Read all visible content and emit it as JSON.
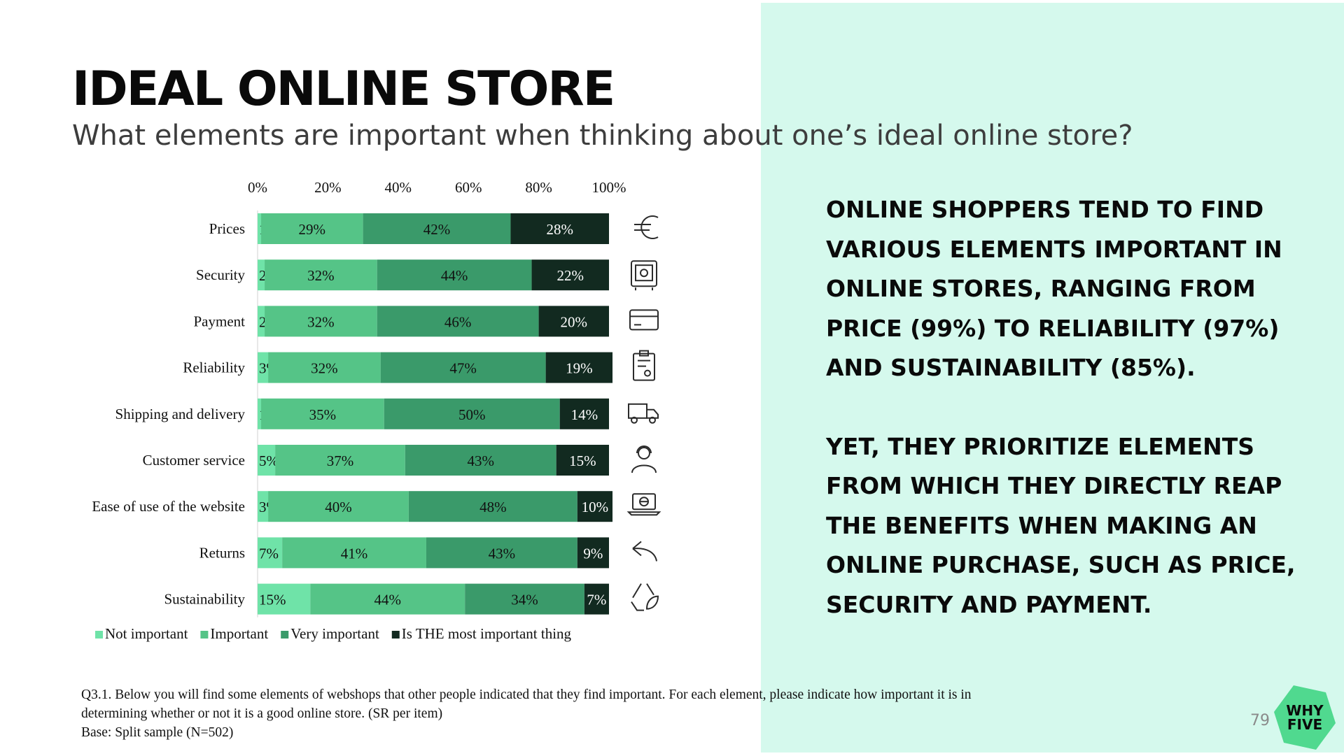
{
  "title": "IDEAL ONLINE STORE",
  "subtitle": "What elements are important when thinking about one’s ideal online store?",
  "chart_data": {
    "type": "bar",
    "orientation": "horizontal",
    "stacked": true,
    "xlim": [
      0,
      100
    ],
    "x_ticks": [
      "0%",
      "20%",
      "40%",
      "60%",
      "80%",
      "100%"
    ],
    "categories": [
      "Prices",
      "Security",
      "Payment",
      "Reliability",
      "Shipping and delivery",
      "Customer service",
      "Ease of use of the website",
      "Returns",
      "Sustainability"
    ],
    "series": [
      {
        "name": "Not important",
        "color": "#6fe3a8",
        "values": [
          1,
          2,
          2,
          3,
          1,
          5,
          3,
          7,
          15
        ]
      },
      {
        "name": "Important",
        "color": "#55c487",
        "values": [
          29,
          32,
          32,
          32,
          35,
          37,
          40,
          41,
          44
        ]
      },
      {
        "name": "Very important",
        "color": "#3a9a6a",
        "values": [
          42,
          44,
          46,
          47,
          50,
          43,
          48,
          43,
          34
        ]
      },
      {
        "name": "Is THE most important thing",
        "color": "#122a20",
        "values": [
          28,
          22,
          20,
          19,
          14,
          15,
          10,
          9,
          7
        ]
      }
    ],
    "grid": false,
    "legend_position": "bottom",
    "row_icons": [
      "euro-icon",
      "safe-icon",
      "credit-card-icon",
      "clipboard-certificate-icon",
      "delivery-truck-icon",
      "customer-service-headset-icon",
      "laptop-globe-icon",
      "return-arrow-icon",
      "recycle-leaf-icon"
    ]
  },
  "takeaways": [
    "ONLINE SHOPPERS TEND TO FIND VARIOUS ELEMENTS IMPORTANT IN ONLINE STORES, RANGING FROM PRICE (99%) TO RELIABILITY (97%) AND SUSTAINABILITY (85%).",
    "YET, THEY PRIORITIZE ELEMENTS FROM WHICH THEY DIRECTLY REAP THE BENEFITS WHEN MAKING AN ONLINE PURCHASE, SUCH AS PRICE, SECURITY AND PAYMENT."
  ],
  "footnote": {
    "line1": "Q3.1. Below you will find some elements of webshops that other people indicated that they find important. For each element, please indicate how important it is in",
    "line2": "determining whether or not it is a good online store. (SR per item)",
    "line3": "Base: Split sample (N=502)"
  },
  "page_number": "79",
  "logo": {
    "line1": "WHY",
    "line2": "FIVE",
    "color": "#50d98f"
  }
}
